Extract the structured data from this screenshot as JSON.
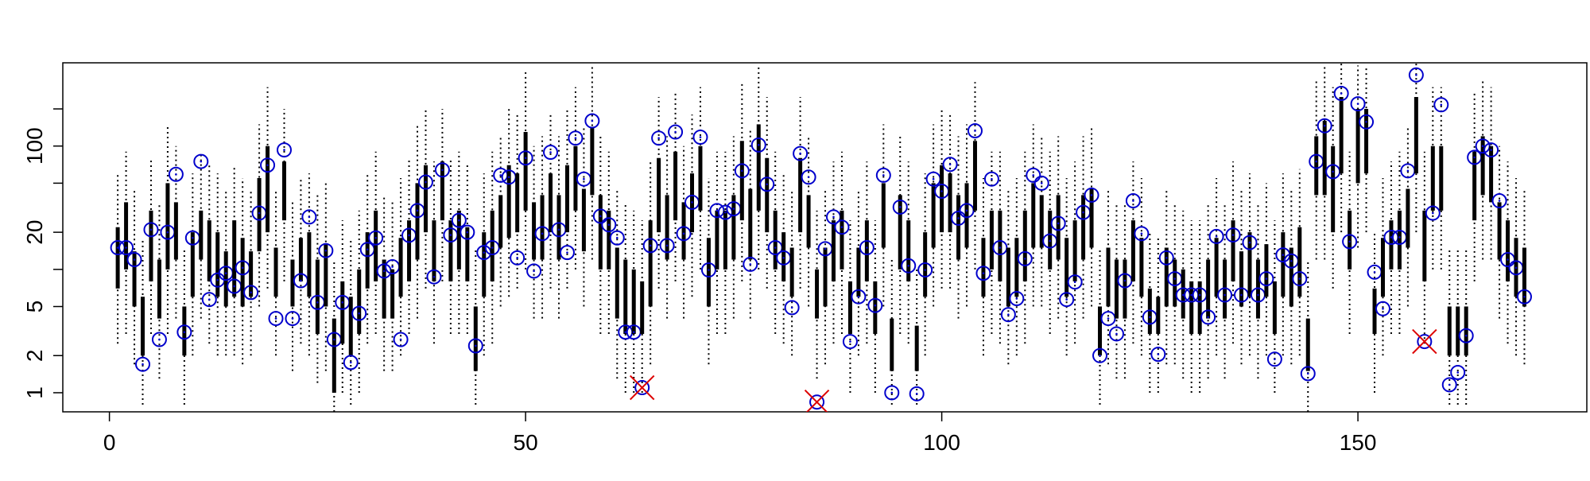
{
  "chart_data": {
    "type": "interval",
    "xlim": [
      -5.6,
      177.5
    ],
    "xticks": [
      0,
      50,
      100,
      150
    ],
    "ylim": [
      0.7,
      473
    ],
    "log_y": true,
    "yticks": [
      1,
      2,
      5,
      {
        "value": 10,
        "label": null
      },
      20,
      {
        "value": 50,
        "label": null
      },
      100,
      {
        "value": 200,
        "label": null
      }
    ],
    "point_color": "#0000cc",
    "bar_color": "#000000",
    "x": [
      1,
      2,
      3,
      4,
      5,
      6,
      7,
      8,
      9,
      10,
      11,
      12,
      13,
      14,
      15,
      16,
      17,
      18,
      19,
      20,
      21,
      22,
      23,
      24,
      25,
      26,
      27,
      28,
      29,
      30,
      31,
      32,
      33,
      34,
      35,
      36,
      37,
      38,
      39,
      40,
      41,
      42,
      43,
      44,
      45,
      46,
      47,
      48,
      49,
      50,
      51,
      52,
      53,
      54,
      55,
      56,
      57,
      58,
      59,
      60,
      61,
      62,
      63,
      64,
      65,
      66,
      67,
      68,
      69,
      70,
      71,
      72,
      73,
      74,
      75,
      76,
      77,
      78,
      79,
      80,
      81,
      82,
      83,
      84,
      85,
      86,
      87,
      88,
      89,
      90,
      91,
      92,
      93,
      94,
      95,
      96,
      97,
      98,
      99,
      100,
      101,
      102,
      103,
      104,
      105,
      106,
      107,
      108,
      109,
      110,
      111,
      112,
      113,
      114,
      115,
      116,
      117,
      118,
      119,
      120,
      121,
      122,
      123,
      124,
      125,
      126,
      127,
      128,
      129,
      130,
      131,
      132,
      133,
      134,
      135,
      136,
      137,
      138,
      139,
      140,
      141,
      142,
      143,
      144,
      145,
      146,
      147,
      148,
      149,
      150,
      151,
      152,
      153,
      154,
      155,
      156,
      157,
      158,
      159,
      160,
      161,
      162,
      163,
      164,
      165,
      166,
      167,
      168,
      169,
      170
    ],
    "values": [
      15,
      15,
      12,
      1.7,
      21,
      2.7,
      20,
      59,
      3.1,
      18,
      75,
      5.7,
      8.2,
      9.3,
      7.3,
      10.3,
      6.5,
      28.6,
      70,
      4,
      93,
      4,
      8.1,
      26.6,
      5.4,
      14.2,
      2.7,
      5.4,
      1.76,
      4.4,
      14.5,
      18,
      9.7,
      10.5,
      2.7,
      18.9,
      30,
      51,
      8.7,
      64,
      19,
      25,
      20,
      2.4,
      13.7,
      15,
      58,
      56,
      12.4,
      80,
      9.7,
      19.5,
      89,
      21,
      13.7,
      116,
      54,
      160,
      27,
      23,
      18,
      3.1,
      3.1,
      1.1,
      15.6,
      116,
      15.6,
      130,
      19.5,
      35,
      118,
      9.9,
      30,
      29,
      31,
      63,
      11,
      102,
      49,
      15,
      12.4,
      4.9,
      87,
      56,
      0.84,
      14.7,
      26.6,
      22,
      2.6,
      6,
      15,
      5.1,
      58,
      1,
      32,
      10.7,
      0.98,
      9.9,
      54,
      43,
      71,
      26,
      30,
      133,
      9.3,
      54,
      15,
      4.3,
      5.8,
      12.2,
      58,
      50,
      17,
      23.6,
      5.7,
      7.9,
      29,
      40,
      2,
      4,
      3,
      8.1,
      36,
      19.5,
      4.1,
      2.05,
      12.4,
      8.4,
      6.2,
      6.2,
      6.2,
      4.1,
      18.5,
      6.2,
      19,
      6.2,
      16.5,
      6.2,
      8.4,
      1.87,
      13.1,
      11.7,
      8.4,
      1.43,
      75,
      146,
      62,
      267,
      16.8,
      220,
      157,
      9.5,
      4.8,
      18.2,
      18.2,
      63,
      377,
      2.6,
      28.6,
      216,
      1.16,
      1.46,
      2.9,
      81,
      100,
      93,
      36,
      12,
      10.3,
      6
    ],
    "box_low": [
      7,
      10,
      5,
      2,
      8,
      4,
      10,
      12,
      2,
      6,
      12,
      8,
      6,
      5,
      6,
      5,
      6,
      14,
      20,
      6,
      25,
      5,
      8,
      6,
      3,
      5,
      1,
      2.5,
      2,
      3,
      7,
      8,
      4,
      4,
      6,
      8,
      12,
      20,
      8,
      25,
      8,
      10,
      8,
      1.5,
      6,
      8,
      15,
      18,
      20,
      30,
      12,
      12,
      20,
      12,
      20,
      30,
      14,
      40,
      10,
      10,
      4,
      3,
      3,
      3,
      5,
      20,
      12,
      25,
      12,
      20,
      30,
      5,
      10,
      10,
      12,
      25,
      12,
      30,
      20,
      10,
      8,
      6,
      20,
      15,
      4,
      5,
      8,
      10,
      3,
      6,
      8,
      3,
      15,
      1.5,
      10,
      8,
      1.5,
      6,
      15,
      20,
      20,
      12,
      15,
      30,
      6,
      10,
      8,
      5,
      6,
      8,
      15,
      15,
      10,
      12,
      6,
      8,
      12,
      15,
      2,
      5,
      4,
      4,
      8,
      6,
      3,
      3,
      5,
      5,
      4,
      3,
      3,
      4,
      6,
      4,
      8,
      5,
      6,
      4,
      6,
      3,
      6,
      5,
      6,
      1.5,
      40,
      40,
      20,
      60,
      10,
      50,
      60,
      3,
      6,
      10,
      10,
      15,
      60,
      8,
      30,
      30,
      2,
      2,
      2,
      25,
      40,
      35,
      12,
      8,
      6,
      5
    ],
    "box_high": [
      22,
      35,
      14,
      6,
      30,
      12,
      50,
      35,
      5,
      20,
      30,
      25,
      20,
      14,
      25,
      18,
      14,
      55,
      100,
      15,
      75,
      12,
      18,
      20,
      12,
      16,
      4,
      8,
      6,
      10,
      20,
      30,
      12,
      10,
      18,
      25,
      50,
      70,
      25,
      75,
      25,
      30,
      22,
      5,
      20,
      30,
      40,
      70,
      60,
      130,
      35,
      40,
      60,
      40,
      70,
      100,
      45,
      140,
      40,
      30,
      15,
      12,
      10,
      8,
      25,
      80,
      40,
      90,
      35,
      60,
      100,
      18,
      30,
      30,
      40,
      110,
      45,
      150,
      80,
      30,
      20,
      15,
      80,
      40,
      10,
      15,
      25,
      30,
      8,
      15,
      25,
      8,
      50,
      4,
      40,
      25,
      3.5,
      20,
      50,
      70,
      60,
      40,
      50,
      110,
      18,
      30,
      30,
      15,
      18,
      30,
      50,
      40,
      30,
      40,
      18,
      25,
      40,
      45,
      5,
      15,
      12,
      12,
      25,
      18,
      7,
      6,
      15,
      12,
      10,
      8,
      8,
      12,
      18,
      12,
      25,
      14,
      20,
      12,
      16,
      8,
      20,
      15,
      22,
      4,
      120,
      160,
      100,
      250,
      30,
      200,
      200,
      7,
      18,
      25,
      30,
      45,
      250,
      30,
      100,
      100,
      5,
      5,
      5,
      90,
      120,
      100,
      35,
      25,
      18,
      15
    ],
    "whisker_low": [
      2.5,
      3,
      1.7,
      0.8,
      3,
      1.3,
      3,
      4,
      0.8,
      2,
      4,
      2.5,
      2,
      2,
      2,
      1.7,
      2,
      5,
      7,
      2,
      8,
      1.5,
      2.5,
      2,
      1.2,
      1.5,
      0.7,
      1,
      0.8,
      1,
      2.5,
      3,
      1.5,
      1.5,
      2,
      3,
      4,
      7,
      2.5,
      8,
      3,
      3,
      3,
      0.8,
      2,
      2.5,
      5,
      6,
      7,
      10,
      4,
      4,
      7,
      4,
      7,
      10,
      5,
      12,
      3,
      3,
      1.3,
      1,
      1,
      1,
      1.7,
      7,
      4,
      8,
      4,
      6,
      10,
      1.7,
      3,
      3,
      4,
      8,
      4,
      10,
      7,
      3,
      2.5,
      2,
      7,
      5,
      1.3,
      1.7,
      2.5,
      3,
      1,
      2,
      2.5,
      1,
      5,
      0.8,
      3,
      2.5,
      0.8,
      2,
      5,
      7,
      7,
      4,
      5,
      10,
      2,
      3,
      2.5,
      1.7,
      2,
      2.5,
      5,
      5,
      3,
      4,
      2,
      2.5,
      4,
      5,
      0.8,
      1.7,
      1.3,
      1.3,
      2.5,
      2,
      1,
      1,
      1.7,
      1.7,
      1.3,
      1,
      1,
      1.3,
      2,
      1.3,
      2.5,
      1.7,
      2,
      1.3,
      2,
      1,
      2,
      1.7,
      2,
      0.7,
      12,
      12,
      7,
      20,
      3,
      15,
      20,
      1,
      2,
      3,
      3,
      5,
      20,
      2.5,
      10,
      10,
      0.8,
      0.8,
      0.8,
      8,
      12,
      12,
      4,
      2.5,
      2,
      1.7
    ],
    "whisker_high": [
      60,
      90,
      45,
      18,
      80,
      35,
      150,
      100,
      15,
      60,
      90,
      70,
      60,
      45,
      70,
      55,
      45,
      150,
      300,
      45,
      200,
      35,
      55,
      60,
      40,
      50,
      12,
      25,
      18,
      30,
      60,
      90,
      40,
      35,
      55,
      80,
      150,
      200,
      75,
      200,
      80,
      90,
      70,
      15,
      60,
      90,
      120,
      200,
      180,
      400,
      100,
      120,
      180,
      120,
      200,
      300,
      140,
      450,
      120,
      90,
      45,
      35,
      30,
      25,
      75,
      250,
      120,
      280,
      100,
      180,
      300,
      55,
      90,
      90,
      120,
      330,
      140,
      450,
      250,
      90,
      60,
      45,
      250,
      120,
      30,
      45,
      75,
      90,
      25,
      45,
      75,
      25,
      150,
      12,
      120,
      75,
      10,
      60,
      150,
      200,
      180,
      120,
      150,
      330,
      55,
      90,
      90,
      45,
      55,
      90,
      150,
      120,
      90,
      120,
      55,
      75,
      120,
      140,
      15,
      45,
      35,
      35,
      75,
      55,
      20,
      18,
      45,
      35,
      30,
      25,
      25,
      35,
      55,
      35,
      75,
      45,
      60,
      35,
      50,
      25,
      60,
      45,
      65,
      12,
      350,
      450,
      300,
      470,
      90,
      450,
      450,
      20,
      55,
      75,
      90,
      140,
      470,
      90,
      300,
      300,
      15,
      15,
      15,
      270,
      350,
      300,
      100,
      75,
      55,
      45
    ],
    "highlight": {
      "x": [
        64,
        85,
        158
      ],
      "values": [
        1.1,
        0.84,
        2.6
      ],
      "color": "#dd0000"
    }
  }
}
